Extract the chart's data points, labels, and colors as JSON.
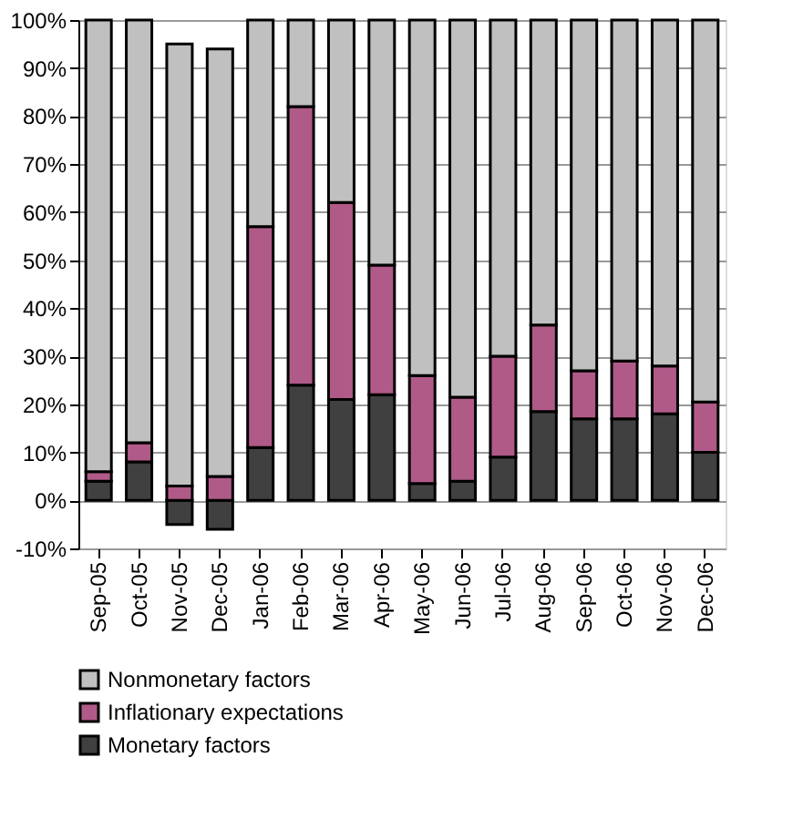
{
  "chart_data": {
    "type": "bar",
    "stacked": true,
    "categories": [
      "Sep-05",
      "Oct-05",
      "Nov-05",
      "Dec-05",
      "Jan-06",
      "Feb-06",
      "Mar-06",
      "Apr-06",
      "May-06",
      "Jun-06",
      "Jul-06",
      "Aug-06",
      "Sep-06",
      "Oct-06",
      "Nov-06",
      "Dec-06"
    ],
    "series": [
      {
        "name": "Monetary factors",
        "color": "#404040",
        "values": [
          4,
          8,
          -5,
          -6,
          11,
          24,
          21,
          22,
          3.5,
          4,
          9,
          18.5,
          17,
          17,
          18,
          10
        ]
      },
      {
        "name": "Inflationary expectations",
        "color": "#b05a88",
        "values": [
          2,
          4,
          3,
          5,
          46,
          58,
          41,
          27,
          22.5,
          17.5,
          21,
          18,
          10,
          12,
          10,
          10.5
        ]
      },
      {
        "name": "Nonmonetary factors",
        "color": "#c0c0c0",
        "values": [
          94,
          88,
          92,
          89,
          43,
          18,
          38,
          51,
          74,
          78.5,
          70,
          63.5,
          73,
          71,
          72,
          79.5
        ]
      }
    ],
    "ylim": [
      -10,
      100
    ],
    "yticks": [
      {
        "value": -10,
        "label": "-10%"
      },
      {
        "value": 0,
        "label": "0%"
      },
      {
        "value": 10,
        "label": "10%"
      },
      {
        "value": 20,
        "label": "20%"
      },
      {
        "value": 30,
        "label": "30%"
      },
      {
        "value": 40,
        "label": "40%"
      },
      {
        "value": 50,
        "label": "50%"
      },
      {
        "value": 60,
        "label": "60%"
      },
      {
        "value": 70,
        "label": "70%"
      },
      {
        "value": 80,
        "label": "80%"
      },
      {
        "value": 90,
        "label": "90%"
      },
      {
        "value": 100,
        "label": "100%"
      }
    ],
    "grid": "y",
    "legend": "bottom"
  }
}
